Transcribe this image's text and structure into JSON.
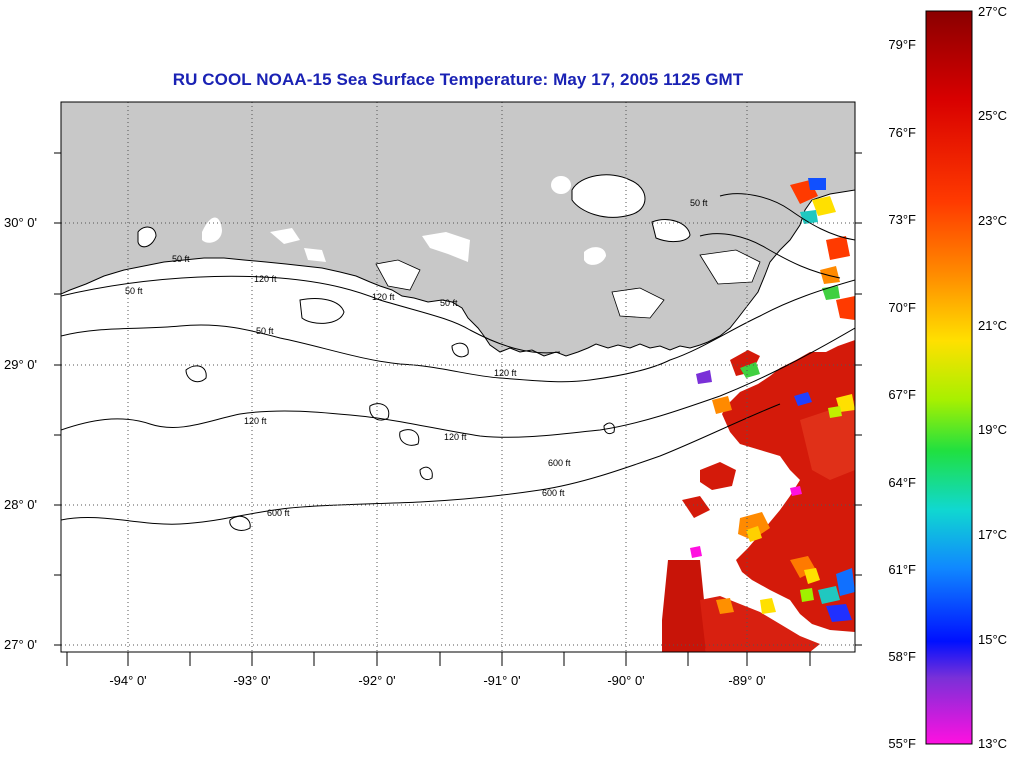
{
  "title": "RU COOL  NOAA-15  Sea Surface Temperature:  May 17, 2005 1125 GMT",
  "latitude_labels": [
    "30° 0'",
    "29° 0'",
    "28° 0'",
    "27° 0'"
  ],
  "longitude_labels": [
    "-94° 0'",
    "-93° 0'",
    "-92° 0'",
    "-91° 0'",
    "-90° 0'",
    "-89° 0'"
  ],
  "colorbar": {
    "fahrenheit_labels": [
      "79°F",
      "76°F",
      "73°F",
      "70°F",
      "67°F",
      "64°F",
      "61°F",
      "58°F",
      "55°F"
    ],
    "celsius_labels": [
      "27°C",
      "25°C",
      "23°C",
      "21°C",
      "19°C",
      "17°C",
      "15°C",
      "13°C"
    ],
    "range_celsius": [
      13,
      27
    ]
  },
  "isobath_labels": [
    "50 ft",
    "120 ft",
    "600 ft"
  ],
  "colors": {
    "title": "#1a22b4",
    "land": "#c8c8c8",
    "water": "#ffffff",
    "warm_sst": "#d41a0a"
  }
}
